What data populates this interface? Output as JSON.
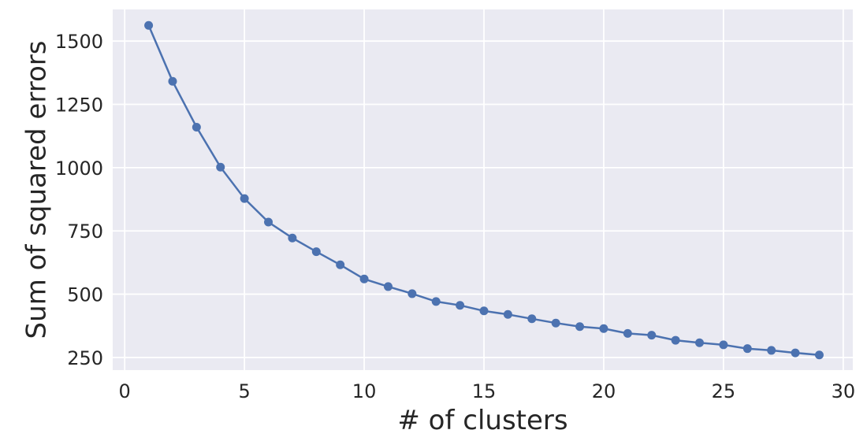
{
  "chart_data": {
    "type": "line",
    "title": "",
    "xlabel": "# of clusters",
    "ylabel": "Sum of squared errors",
    "xlim": [
      -0.5,
      30.4
    ],
    "ylim": [
      200,
      1625
    ],
    "x_ticks": [
      0,
      5,
      10,
      15,
      20,
      25,
      30
    ],
    "y_ticks": [
      250,
      500,
      750,
      1000,
      1250,
      1500
    ],
    "grid": true,
    "legend": "none",
    "series": [
      {
        "x": [
          1,
          2,
          3,
          4,
          5,
          6,
          7,
          8,
          9,
          10,
          11,
          12,
          13,
          14,
          15,
          16,
          17,
          18,
          19,
          20,
          21,
          22,
          23,
          24,
          25,
          26,
          27,
          28,
          29
        ],
        "values": [
          1562,
          1341,
          1160,
          1002,
          878,
          785,
          722,
          668,
          616,
          560,
          530,
          502,
          471,
          456,
          434,
          420,
          403,
          386,
          372,
          364,
          345,
          338,
          318,
          308,
          300,
          285,
          278,
          268,
          260
        ],
        "color": "#4c72b0"
      }
    ],
    "colors": {
      "background": "#eaeaf2",
      "grid": "#ffffff",
      "line": "#4c72b0"
    }
  }
}
